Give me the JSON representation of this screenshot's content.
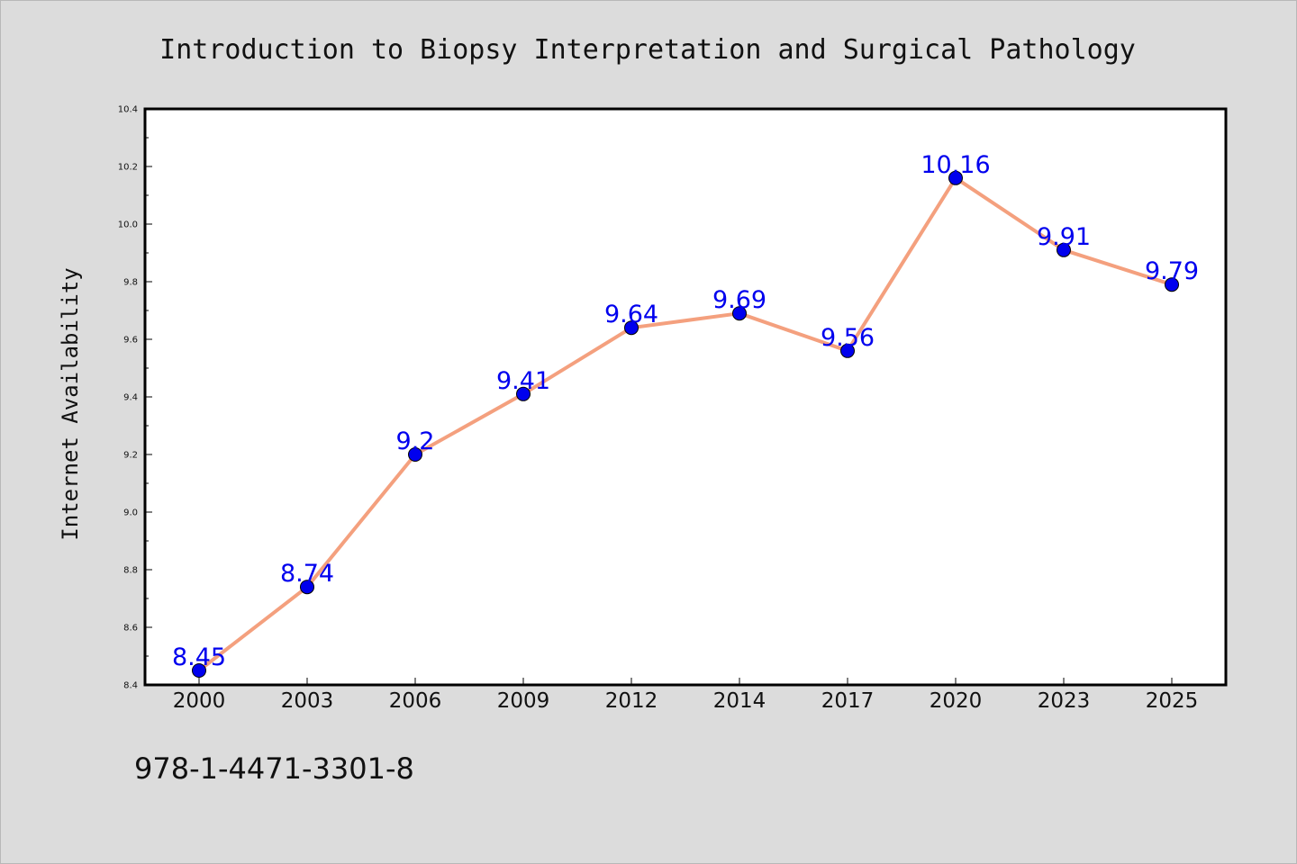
{
  "chart_data": {
    "type": "line",
    "title": "Introduction to Biopsy Interpretation and Surgical Pathology",
    "xlabel": "",
    "ylabel": "Internet Availability",
    "categories": [
      "2000",
      "2003",
      "2006",
      "2009",
      "2012",
      "2014",
      "2017",
      "2020",
      "2023",
      "2025"
    ],
    "series": [
      {
        "values": [
          8.45,
          8.74,
          9.2,
          9.41,
          9.64,
          9.69,
          9.56,
          10.16,
          9.91,
          9.79
        ]
      }
    ],
    "data_labels": [
      "8.45",
      "8.74",
      "9.2",
      "9.41",
      "9.64",
      "9.69",
      "9.56",
      "10.16",
      "9.91",
      "9.79"
    ],
    "ylim": [
      8.4,
      10.4
    ],
    "yticks": [
      "8.4",
      "8.6",
      "8.8",
      "9.0",
      "9.2",
      "9.4",
      "9.6",
      "9.8",
      "10.0",
      "10.2",
      "10.4"
    ],
    "grid": false,
    "legend": "none",
    "colors": {
      "line": "#f4a07e",
      "marker": "#0000ee",
      "marker_edge": "#000000",
      "data_label": "#0000ee",
      "figure_background": "#dcdcdc",
      "plot_background": "#ffffff"
    }
  },
  "footnote": "978-1-4471-3301-8"
}
